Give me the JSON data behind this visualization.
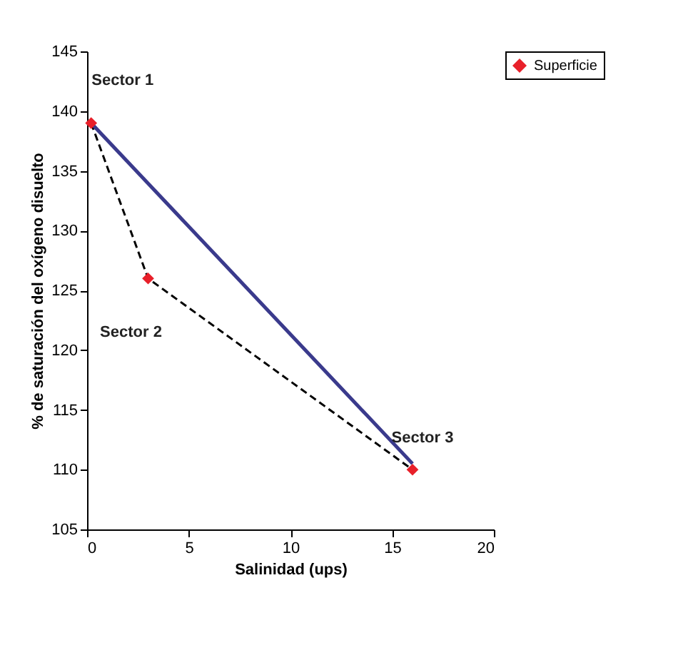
{
  "chart_data": {
    "type": "scatter",
    "xlabel": "Salinidad (ups)",
    "ylabel": "% de saturación del oxígeno disuelto",
    "xlim": [
      0,
      20
    ],
    "xticks": [
      0,
      5,
      10,
      15,
      20
    ],
    "ylim": [
      105,
      145
    ],
    "yticks": [
      105,
      110,
      115,
      120,
      125,
      130,
      135,
      140,
      145
    ],
    "grid": false,
    "legend": "right",
    "marker": "diamond",
    "series": [
      {
        "type": "line",
        "color": "#000000",
        "line_style": "dashed",
        "marker": "none",
        "x": [
          0.2,
          3,
          16
        ],
        "values": [
          139,
          126,
          110
        ]
      },
      {
        "type": "line",
        "color": "#3a3a8c",
        "line_style": "solid",
        "marker": "none",
        "x": [
          0.2,
          16
        ],
        "values": [
          139,
          110.5
        ]
      },
      {
        "name": "Superficie",
        "color": "#e8202a",
        "x": [
          0.2,
          3,
          16
        ],
        "values": [
          139,
          126,
          110
        ]
      }
    ],
    "annotations": [
      {
        "text": "Sector 1",
        "x": 0.2,
        "y": 139
      },
      {
        "text": "Sector 2",
        "x": 3,
        "y": 126
      },
      {
        "text": "Sector 3",
        "x": 16,
        "y": 110
      }
    ]
  }
}
